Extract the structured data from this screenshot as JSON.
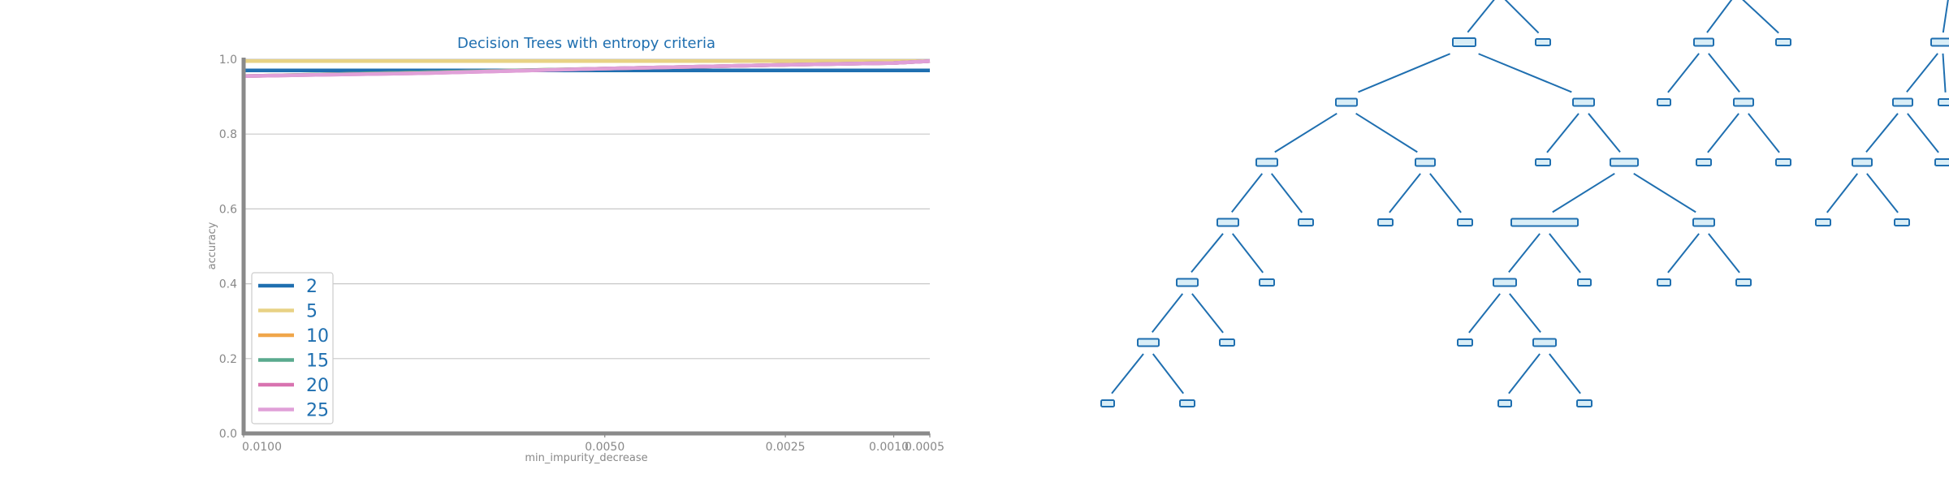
{
  "chart_data": [
    {
      "type": "line",
      "title": "Decision Trees with entropy criteria",
      "xlabel": "min_impurity_decrease",
      "ylabel": "accuracy",
      "x": [
        0.01,
        0.0075,
        0.005,
        0.0025,
        0.001,
        0.0005
      ],
      "x_reversed": true,
      "xticks": [
        0.01,
        0.005,
        0.0025,
        0.001,
        0.0005
      ],
      "xtick_labels": [
        "0.0100",
        "0.0050",
        "0.0025",
        "0.0010",
        "0.0005"
      ],
      "xlim": [
        0.01,
        0.0005
      ],
      "ylim": [
        0.0,
        1.0
      ],
      "yticks": [
        0.0,
        0.2,
        0.4,
        0.6,
        0.8,
        1.0
      ],
      "ytick_labels": [
        "0.0",
        "0.2",
        "0.4",
        "0.6",
        "0.8",
        "1.0"
      ],
      "grid": "horizontal",
      "legend_position": "bottom-left",
      "series": [
        {
          "name": "2",
          "color": "#1f6fb0",
          "values": [
            0.97,
            0.97,
            0.97,
            0.97,
            0.97,
            0.97
          ]
        },
        {
          "name": "5",
          "color": "#e8d285",
          "values": [
            0.995,
            0.995,
            0.995,
            0.995,
            0.995,
            0.995
          ]
        },
        {
          "name": "10",
          "color": "#f0a64a",
          "values": [
            0.955,
            0.965,
            0.975,
            0.985,
            0.99,
            0.995
          ]
        },
        {
          "name": "15",
          "color": "#5aaa8e",
          "values": [
            0.955,
            0.965,
            0.975,
            0.985,
            0.99,
            0.995
          ]
        },
        {
          "name": "20",
          "color": "#d873b0",
          "values": [
            0.955,
            0.963,
            0.975,
            0.985,
            0.99,
            0.995
          ]
        },
        {
          "name": "25",
          "color": "#e0a0d8",
          "values": [
            0.955,
            0.963,
            0.975,
            0.985,
            0.99,
            0.995
          ]
        }
      ]
    },
    {
      "type": "diagram",
      "node_color": "#1f6fb0",
      "node_fill": "#d9eef7"
    }
  ]
}
